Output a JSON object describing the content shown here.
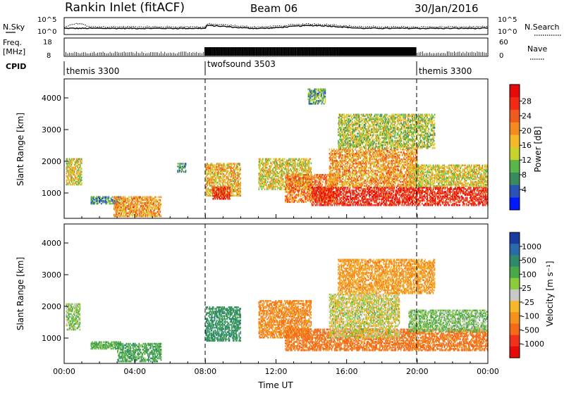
{
  "header": {
    "station": "Rankin Inlet (fitACF)",
    "beam": "Beam 06",
    "date": "30/Jan/2016"
  },
  "noise_panel": {
    "left_label": "N.Sky",
    "right_label": "N.Search",
    "left_ticks": [
      "10^5",
      "10^0"
    ],
    "right_ticks": [
      "10^5",
      "10^0"
    ]
  },
  "freq_panel": {
    "left_label_line1": "Freq.",
    "left_label_line2": "[MHz]",
    "right_label": "Nave",
    "left_ticks": [
      "18",
      "8"
    ],
    "right_ticks": [
      "60",
      "0"
    ]
  },
  "cpid_panel": {
    "label": "CPID",
    "segments": [
      {
        "name": "themis 3300",
        "start_hour": 0,
        "end_hour": 8
      },
      {
        "name": "twofsound 3503",
        "start_hour": 8,
        "end_hour": 20
      },
      {
        "name": "themis 3300",
        "start_hour": 20,
        "end_hour": 24
      }
    ]
  },
  "chart_data": [
    {
      "type": "heatmap",
      "parameter": "power",
      "xlabel": "Time UT",
      "ylabel": "Slant Range [km]",
      "xlim": [
        0,
        24
      ],
      "ylim": [
        200,
        4600
      ],
      "x_ticks": [
        "00:00",
        "04:00",
        "08:00",
        "12:00",
        "16:00",
        "20:00",
        "00:00"
      ],
      "y_ticks": [
        1000,
        2000,
        3000,
        4000
      ],
      "colorbar": {
        "label": "Power [dB]",
        "ticks": [
          4,
          8,
          12,
          16,
          20,
          24,
          28
        ],
        "colors": [
          "#0019ff",
          "#2b52b5",
          "#3a8a60",
          "#5ab54a",
          "#c8d22c",
          "#f5b82a",
          "#f58a22",
          "#f05a1e",
          "#f02a14",
          "#e60a0a"
        ]
      },
      "regions": [
        {
          "t0": 0.1,
          "t1": 1.0,
          "r0": 1250,
          "r1": 2100,
          "value": 16
        },
        {
          "t0": 1.5,
          "t1": 3.2,
          "r0": 650,
          "r1": 900,
          "value": 8
        },
        {
          "t0": 2.8,
          "t1": 5.5,
          "r0": 250,
          "r1": 900,
          "value": 20
        },
        {
          "t0": 6.4,
          "t1": 6.9,
          "r0": 1650,
          "r1": 1950,
          "value": 8
        },
        {
          "t0": 8.0,
          "t1": 10.0,
          "r0": 900,
          "r1": 1950,
          "value": 18
        },
        {
          "t0": 8.4,
          "t1": 9.4,
          "r0": 800,
          "r1": 1200,
          "value": 28
        },
        {
          "t0": 11.0,
          "t1": 14.0,
          "r0": 1100,
          "r1": 2100,
          "value": 16
        },
        {
          "t0": 12.5,
          "t1": 15.5,
          "r0": 700,
          "r1": 1600,
          "value": 22
        },
        {
          "t0": 14.0,
          "t1": 24.0,
          "r0": 600,
          "r1": 1200,
          "value": 28
        },
        {
          "t0": 15.0,
          "t1": 20.0,
          "r0": 1200,
          "r1": 2400,
          "value": 20
        },
        {
          "t0": 19.5,
          "t1": 24.0,
          "r0": 1200,
          "r1": 1900,
          "value": 16
        },
        {
          "t0": 13.8,
          "t1": 14.8,
          "r0": 3800,
          "r1": 4300,
          "value": 10
        },
        {
          "t0": 15.5,
          "t1": 21.0,
          "r0": 2400,
          "r1": 3500,
          "value": 14
        }
      ]
    },
    {
      "type": "heatmap",
      "parameter": "velocity",
      "xlabel": "Time UT",
      "ylabel": "Slant Range [km]",
      "xlim": [
        0,
        24
      ],
      "ylim": [
        200,
        4600
      ],
      "x_ticks": [
        "00:00",
        "04:00",
        "08:00",
        "12:00",
        "16:00",
        "20:00",
        "00:00"
      ],
      "y_ticks": [
        1000,
        2000,
        3000,
        4000
      ],
      "colorbar": {
        "label": "Velocity [m s⁻¹]",
        "ticks": [
          "1000",
          "500",
          "100",
          "25",
          "-25",
          "-100",
          "-500",
          "-1000"
        ],
        "colors": [
          "#1a3ca0",
          "#2a6aa8",
          "#2e8a6a",
          "#4aa84a",
          "#8ccc3a",
          "#c8c8c8",
          "#f5b82a",
          "#f5921e",
          "#f56a18",
          "#f0321a",
          "#e60a0a"
        ]
      },
      "regions": [
        {
          "t0": 0.1,
          "t1": 0.9,
          "r0": 1250,
          "r1": 2100,
          "value": 80
        },
        {
          "t0": 1.5,
          "t1": 3.2,
          "r0": 650,
          "r1": 900,
          "value": 150
        },
        {
          "t0": 3.0,
          "t1": 5.5,
          "r0": 250,
          "r1": 850,
          "value": 200
        },
        {
          "t0": 8.0,
          "t1": 10.0,
          "r0": 900,
          "r1": 2000,
          "value": 300
        },
        {
          "t0": 11.0,
          "t1": 14.0,
          "r0": 1000,
          "r1": 2200,
          "value": -200
        },
        {
          "t0": 12.5,
          "t1": 24.0,
          "r0": 600,
          "r1": 1300,
          "value": -300
        },
        {
          "t0": 15.0,
          "t1": 19.0,
          "r0": 1000,
          "r1": 2400,
          "value": 0
        },
        {
          "t0": 19.5,
          "t1": 24.0,
          "r0": 1200,
          "r1": 1900,
          "value": 100
        },
        {
          "t0": 15.5,
          "t1": 21.0,
          "r0": 2400,
          "r1": 3500,
          "value": -150
        }
      ]
    }
  ]
}
